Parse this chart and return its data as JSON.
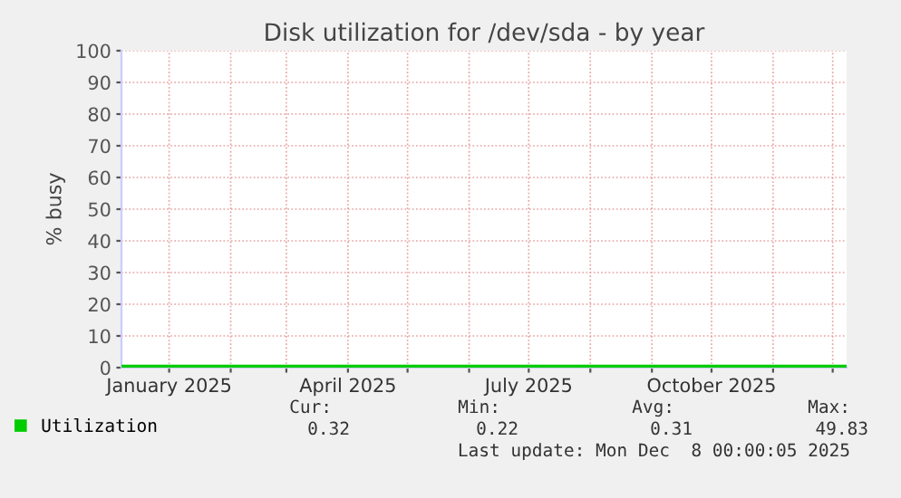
{
  "chart_data": {
    "type": "line",
    "title": "Disk utilization for /dev/sda - by year",
    "ylabel": "% busy",
    "x": [
      "2024-12-08",
      "2025-01-15",
      "2025-02-15",
      "2025-03-15",
      "2025-04-15",
      "2025-05-15",
      "2025-06-15",
      "2025-07-15",
      "2025-08-15",
      "2025-09-15",
      "2025-10-15",
      "2025-11-15",
      "2025-12-08"
    ],
    "series": [
      {
        "name": "Utilization",
        "color": "#00cc00",
        "values": [
          0.3,
          0.3,
          0.3,
          0.3,
          0.3,
          0.3,
          0.3,
          0.3,
          0.3,
          0.3,
          0.3,
          0.3,
          0.3
        ]
      }
    ],
    "xlim": [
      "2024-12-08",
      "2025-12-08"
    ],
    "xticks": [
      {
        "value": "2025-01-01",
        "label": "January 2025"
      },
      {
        "value": "2025-02-01",
        "label": null
      },
      {
        "value": "2025-03-01",
        "label": null
      },
      {
        "value": "2025-04-01",
        "label": "April 2025"
      },
      {
        "value": "2025-05-01",
        "label": null
      },
      {
        "value": "2025-06-01",
        "label": null
      },
      {
        "value": "2025-07-01",
        "label": "July 2025"
      },
      {
        "value": "2025-08-01",
        "label": null
      },
      {
        "value": "2025-09-01",
        "label": null
      },
      {
        "value": "2025-10-01",
        "label": "October 2025"
      },
      {
        "value": "2025-11-01",
        "label": null
      },
      {
        "value": "2025-12-01",
        "label": null
      }
    ],
    "ylim": [
      0,
      100
    ],
    "yticks": [
      0,
      10,
      20,
      30,
      40,
      50,
      60,
      70,
      80,
      90,
      100
    ],
    "grid": true,
    "legend": "bottom left",
    "annotations": [
      "Cur:",
      "Min:",
      "Avg:",
      "Max:",
      "0.32",
      "0.22",
      "0.31",
      "49.83",
      "Last update: Mon Dec  8 00:00:05 2025"
    ]
  }
}
